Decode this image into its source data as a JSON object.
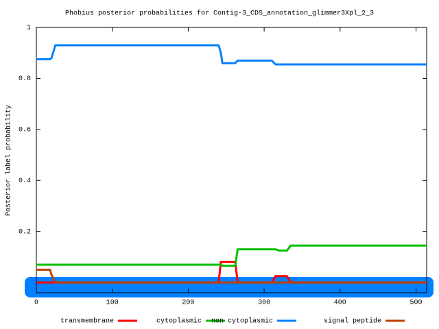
{
  "chart_data": {
    "type": "line",
    "title": "Phobius posterior probabilities for Contig-3_CDS_annotation_glimmer3Xpl_2_3",
    "y_label": "Posterior label probability",
    "x": [
      0,
      18,
      20,
      25,
      240,
      243,
      245,
      260,
      262,
      265,
      310,
      315,
      320,
      330,
      335,
      514
    ],
    "series": [
      {
        "name": "transmembrane",
        "color": "#ff0000",
        "values": [
          0,
          0,
          0,
          0,
          0,
          0.08,
          0.08,
          0.08,
          0.08,
          0,
          0,
          0.025,
          0.025,
          0.025,
          0,
          0
        ]
      },
      {
        "name": "cytoplasmic",
        "color": "#00c000",
        "values": [
          0.07,
          0.07,
          0.07,
          0.07,
          0.07,
          0.07,
          0.065,
          0.065,
          0.065,
          0.13,
          0.13,
          0.13,
          0.125,
          0.125,
          0.145,
          0.145
        ]
      },
      {
        "name": "non cytoplasmic",
        "color": "#0080ff",
        "values": [
          0.875,
          0.875,
          0.88,
          0.93,
          0.93,
          0.9,
          0.86,
          0.86,
          0.86,
          0.87,
          0.87,
          0.855,
          0.855,
          0.855,
          0.855,
          0.855
        ]
      },
      {
        "name": "signal peptide",
        "color": "#c04000",
        "values": [
          0.05,
          0.05,
          0.03,
          0,
          0,
          0,
          0,
          0,
          0,
          0,
          0,
          0,
          0,
          0,
          0,
          0
        ]
      }
    ],
    "xlim": [
      0,
      514
    ],
    "ylim": [
      -0.04,
      1
    ],
    "xticks": [
      0,
      100,
      200,
      300,
      400,
      500
    ],
    "yticks": [
      0.2,
      0.4,
      0.6,
      0.8,
      1
    ]
  }
}
